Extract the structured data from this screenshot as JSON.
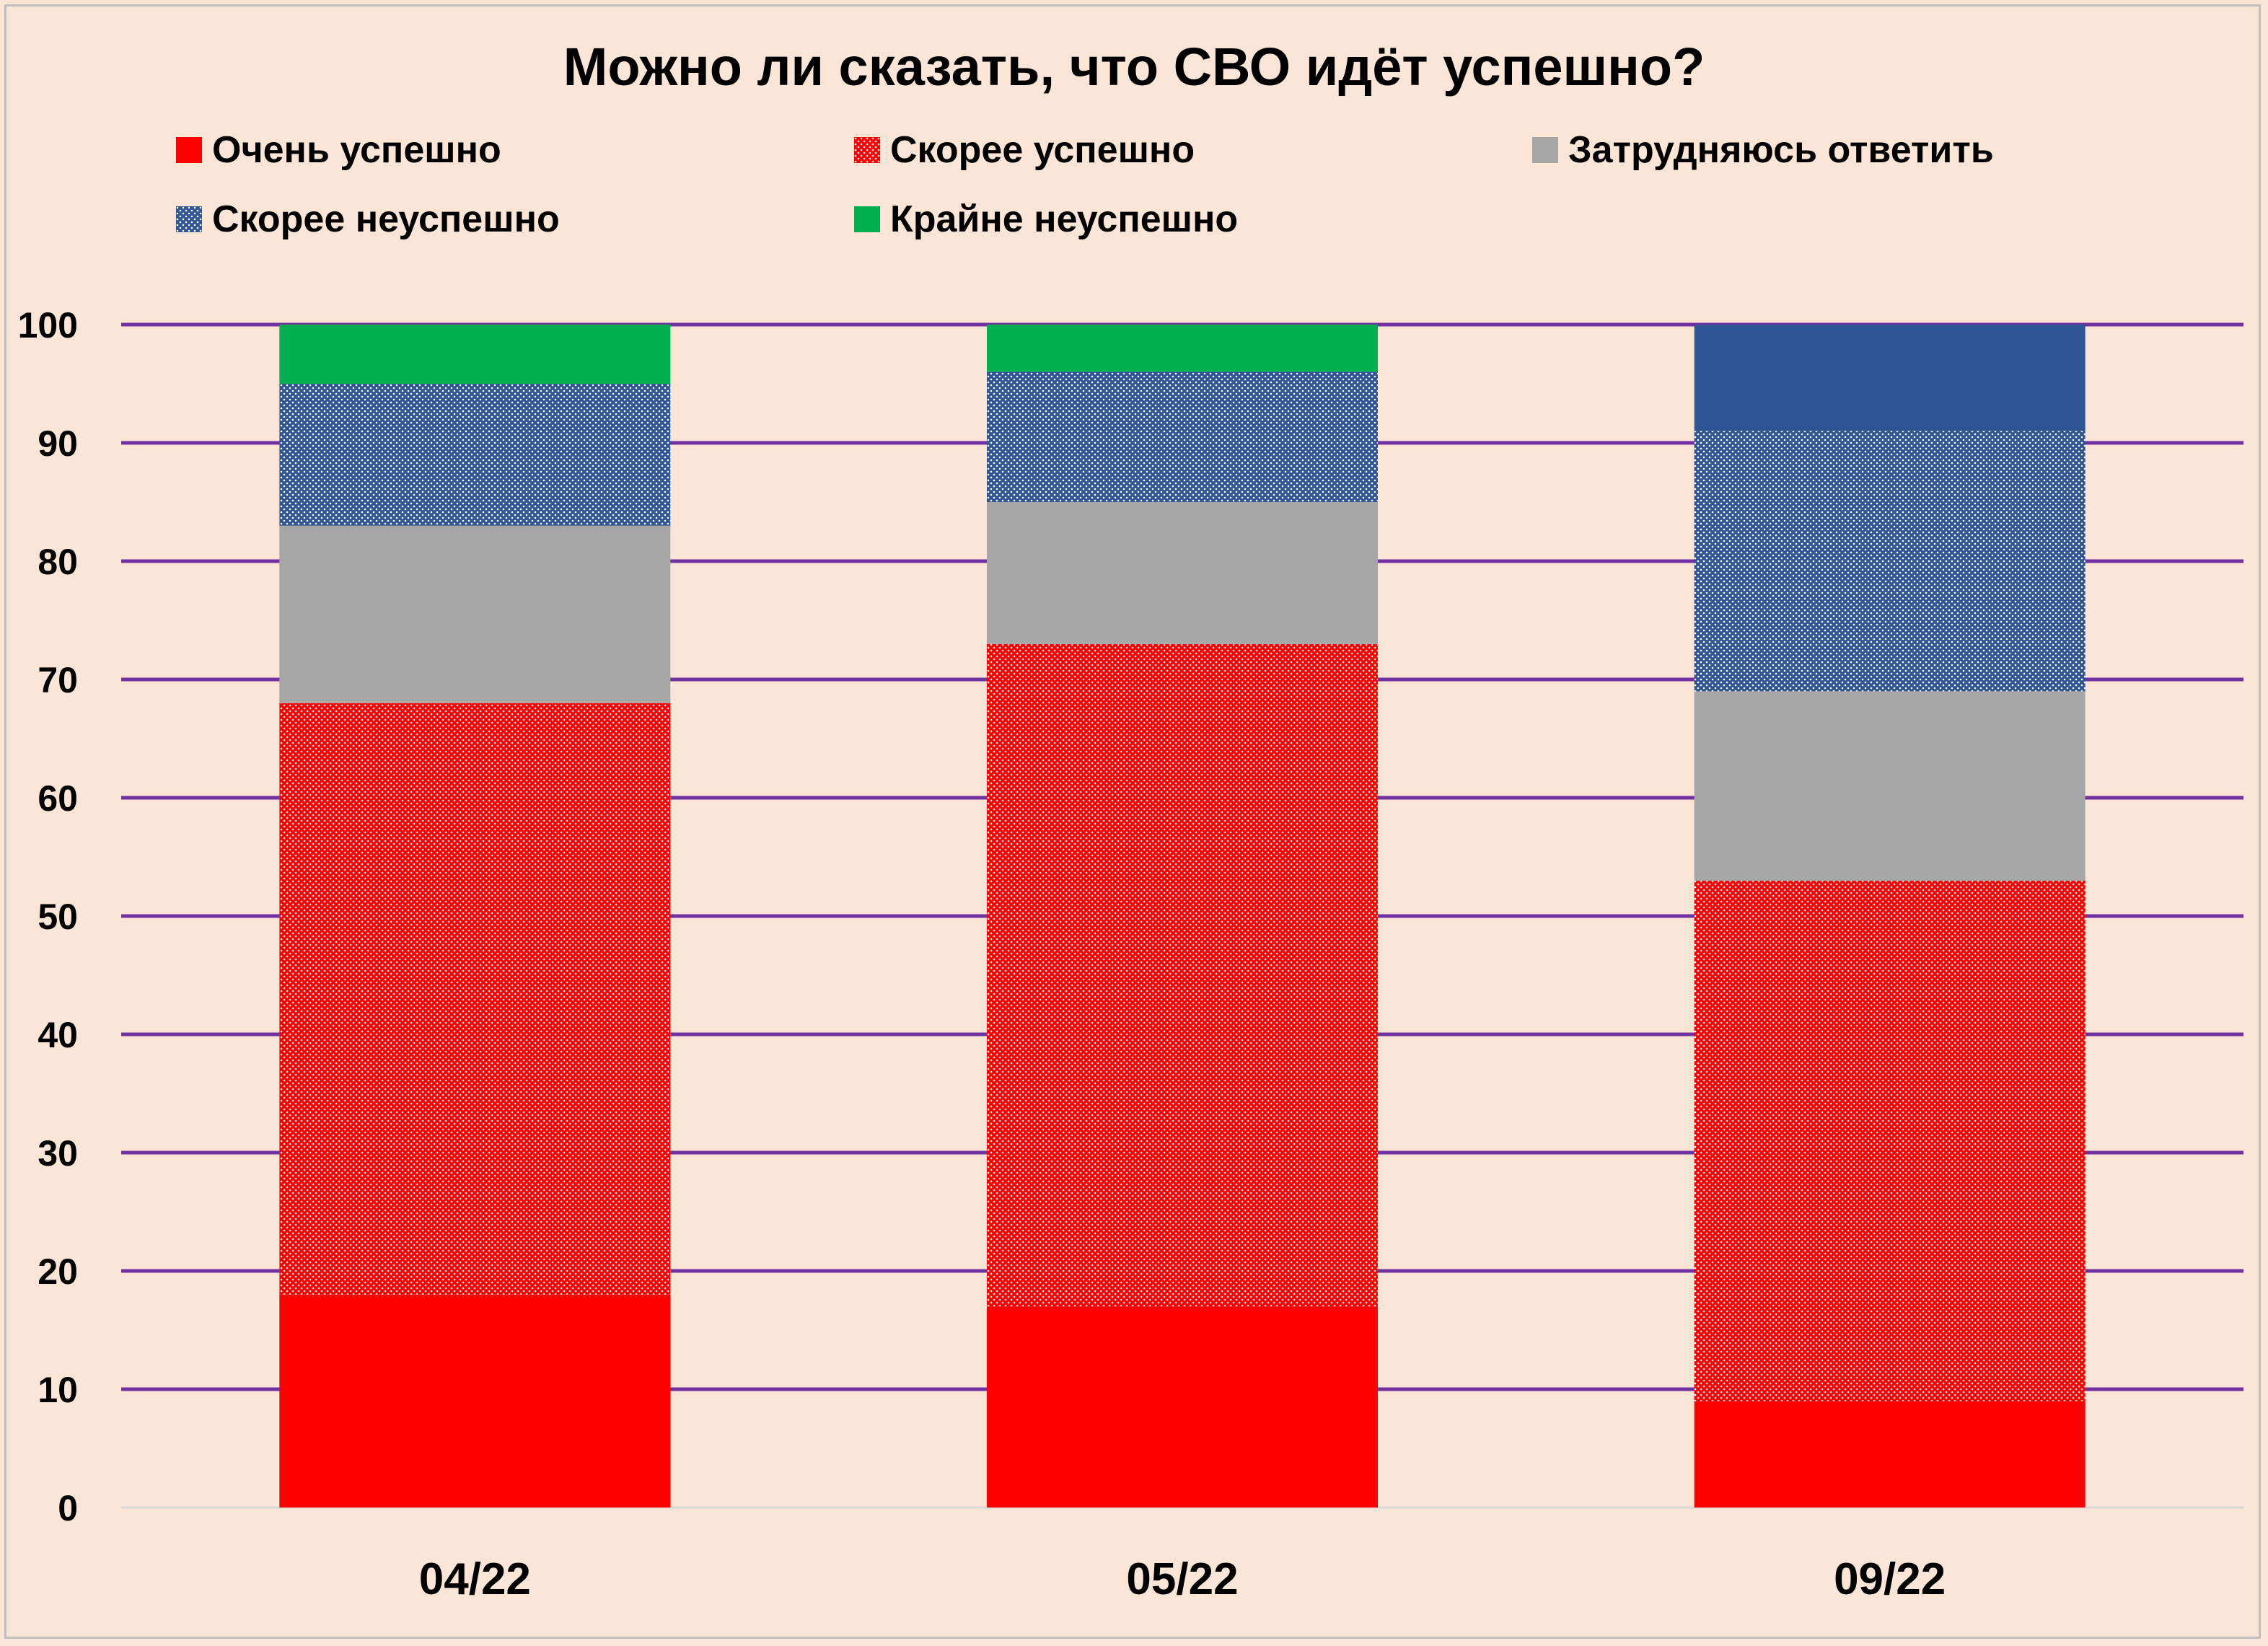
{
  "chart_data": {
    "type": "bar",
    "stacked": true,
    "title": "Можно ли сказать, что СВО идёт успешно?",
    "xlabel": "",
    "ylabel": "",
    "categories": [
      "04/22",
      "05/22",
      "09/22"
    ],
    "ylim": [
      0,
      100
    ],
    "yticks": [
      0,
      10,
      20,
      30,
      40,
      50,
      60,
      70,
      80,
      90,
      100
    ],
    "grid": true,
    "legend_position": "top",
    "series": [
      {
        "name": "Очень успешно",
        "color": "#ff0000",
        "pattern": "solid",
        "values": [
          18,
          17,
          9
        ]
      },
      {
        "name": "Скорее успешно",
        "color": "#ff0000",
        "pattern": "dots",
        "values": [
          50,
          56,
          44
        ]
      },
      {
        "name": "Затрудняюсь ответить",
        "color": "#a6a6a6",
        "pattern": "solid",
        "values": [
          15,
          12,
          16
        ]
      },
      {
        "name": "Скорее неуспешно",
        "color": "#2f5597",
        "pattern": "dots",
        "values": [
          12,
          11,
          22
        ]
      },
      {
        "name": "Крайне неуспешно",
        "color": "#00b050",
        "pattern": "solid",
        "values": [
          5,
          4,
          9
        ]
      }
    ],
    "extra_segment_colors": {
      "09/22_top": "#2f5597"
    }
  },
  "colors": {
    "background": "#fbe5d6",
    "gridline": "#7030a0",
    "border": "#bfbfbf"
  }
}
